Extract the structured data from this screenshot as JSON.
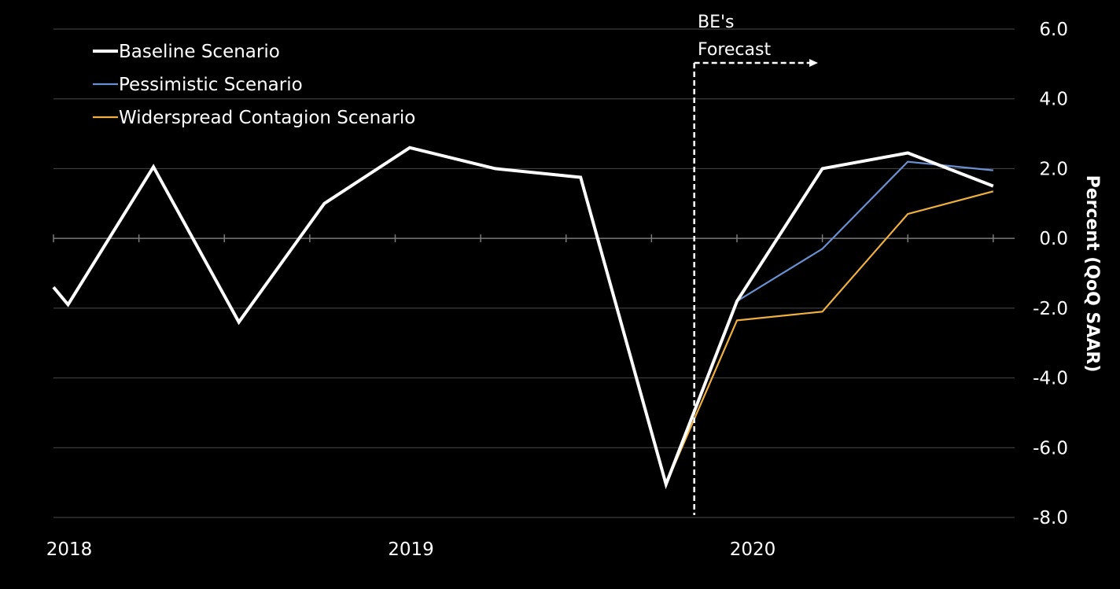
{
  "chart_data": {
    "type": "line",
    "title": "",
    "xlabel": "",
    "ylabel": "Percent (QoQ SAAR)",
    "y_axis_position": "right",
    "ylim": [
      -8.0,
      6.0
    ],
    "y_ticks": [
      "6.0",
      "4.0",
      "2.0",
      "0.0",
      "-2.0",
      "-4.0",
      "-6.0",
      "-8.0"
    ],
    "y_tick_values": [
      6,
      4,
      2,
      0,
      -2,
      -4,
      -6,
      -8
    ],
    "x_tick_labels": [
      "2018",
      "2019",
      "2020"
    ],
    "x_tick_values": [
      0,
      4,
      8
    ],
    "x_range": [
      0,
      11.25
    ],
    "grid": true,
    "legend_position": "top-left",
    "annotation": {
      "text_lines": [
        "BE's",
        "Forecast"
      ],
      "x": 7.5,
      "style": "dashed-vertical-line-with-arrow"
    },
    "series": [
      {
        "name": "Baseline Scenario",
        "color": "#ffffff",
        "x": [
          0,
          0.17,
          1.17,
          2.17,
          3.17,
          4.17,
          5.17,
          6.17,
          7.17,
          8.0,
          9.0,
          10.0,
          11.0
        ],
        "values": [
          -1.4,
          -1.9,
          2.05,
          -2.4,
          1.0,
          2.6,
          2.0,
          1.75,
          -7.05,
          -1.8,
          2.0,
          2.45,
          1.5
        ]
      },
      {
        "name": "Pessimistic Scenario",
        "color": "#6a8fd0",
        "x": [
          7.17,
          8.0,
          9.0,
          10.0,
          11.0
        ],
        "values": [
          -7.05,
          -1.8,
          -0.3,
          2.2,
          1.95
        ]
      },
      {
        "name": "Widerspread Contagion Scenario",
        "color": "#f0b040",
        "x": [
          7.17,
          8.0,
          9.0,
          10.0,
          11.0
        ],
        "values": [
          -7.05,
          -2.35,
          -2.1,
          0.7,
          1.35
        ]
      }
    ]
  }
}
